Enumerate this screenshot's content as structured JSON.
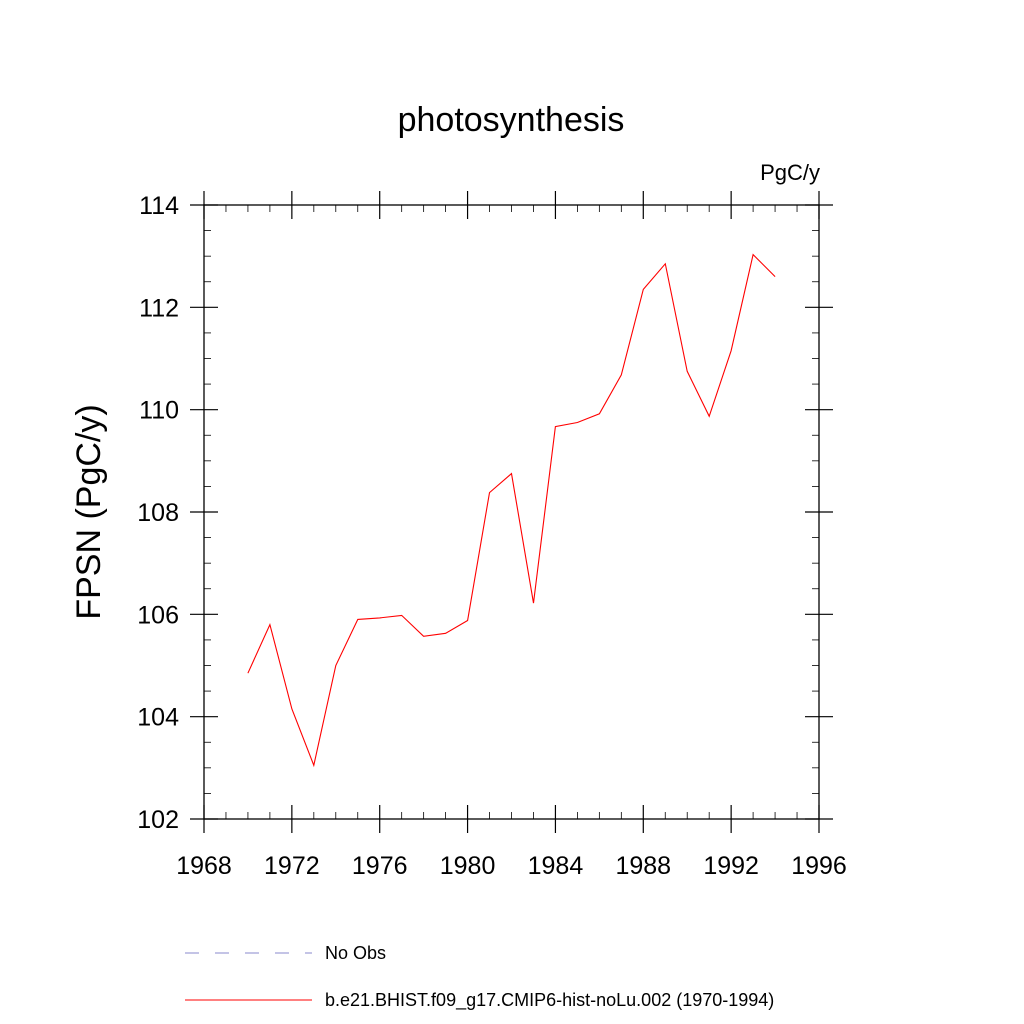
{
  "chart_data": {
    "type": "line",
    "title": "photosynthesis",
    "units_label": "PgC/y",
    "xlabel": "",
    "ylabel": "FPSN  (PgC/y)",
    "xlim": [
      1968,
      1996
    ],
    "ylim": [
      102,
      114
    ],
    "x_ticks": [
      1968,
      1972,
      1976,
      1980,
      1984,
      1988,
      1992,
      1996
    ],
    "y_ticks": [
      102,
      104,
      106,
      108,
      110,
      112,
      114
    ],
    "grid": false,
    "legend_placement": "bottom",
    "legend": [
      {
        "label": "No Obs",
        "style": "dashed",
        "color": "#8888cc"
      },
      {
        "label": "b.e21.BHIST.f09_g17.CMIP6-hist-noLu.002 (1970-1994)",
        "style": "solid",
        "color": "#ff0000"
      }
    ],
    "series": [
      {
        "name": "b.e21.BHIST.f09_g17.CMIP6-hist-noLu.002 (1970-1994)",
        "color": "#ff0000",
        "x": [
          1970,
          1971,
          1972,
          1973,
          1974,
          1975,
          1976,
          1977,
          1978,
          1979,
          1980,
          1981,
          1982,
          1983,
          1984,
          1985,
          1986,
          1987,
          1988,
          1989,
          1990,
          1991,
          1992,
          1993,
          1994
        ],
        "y": [
          104.85,
          105.8,
          104.15,
          103.05,
          105.0,
          105.9,
          105.93,
          105.98,
          105.57,
          105.63,
          105.88,
          108.38,
          108.75,
          106.22,
          109.67,
          109.75,
          109.92,
          110.68,
          112.35,
          112.85,
          110.75,
          109.87,
          111.15,
          113.03,
          112.6
        ]
      }
    ]
  }
}
